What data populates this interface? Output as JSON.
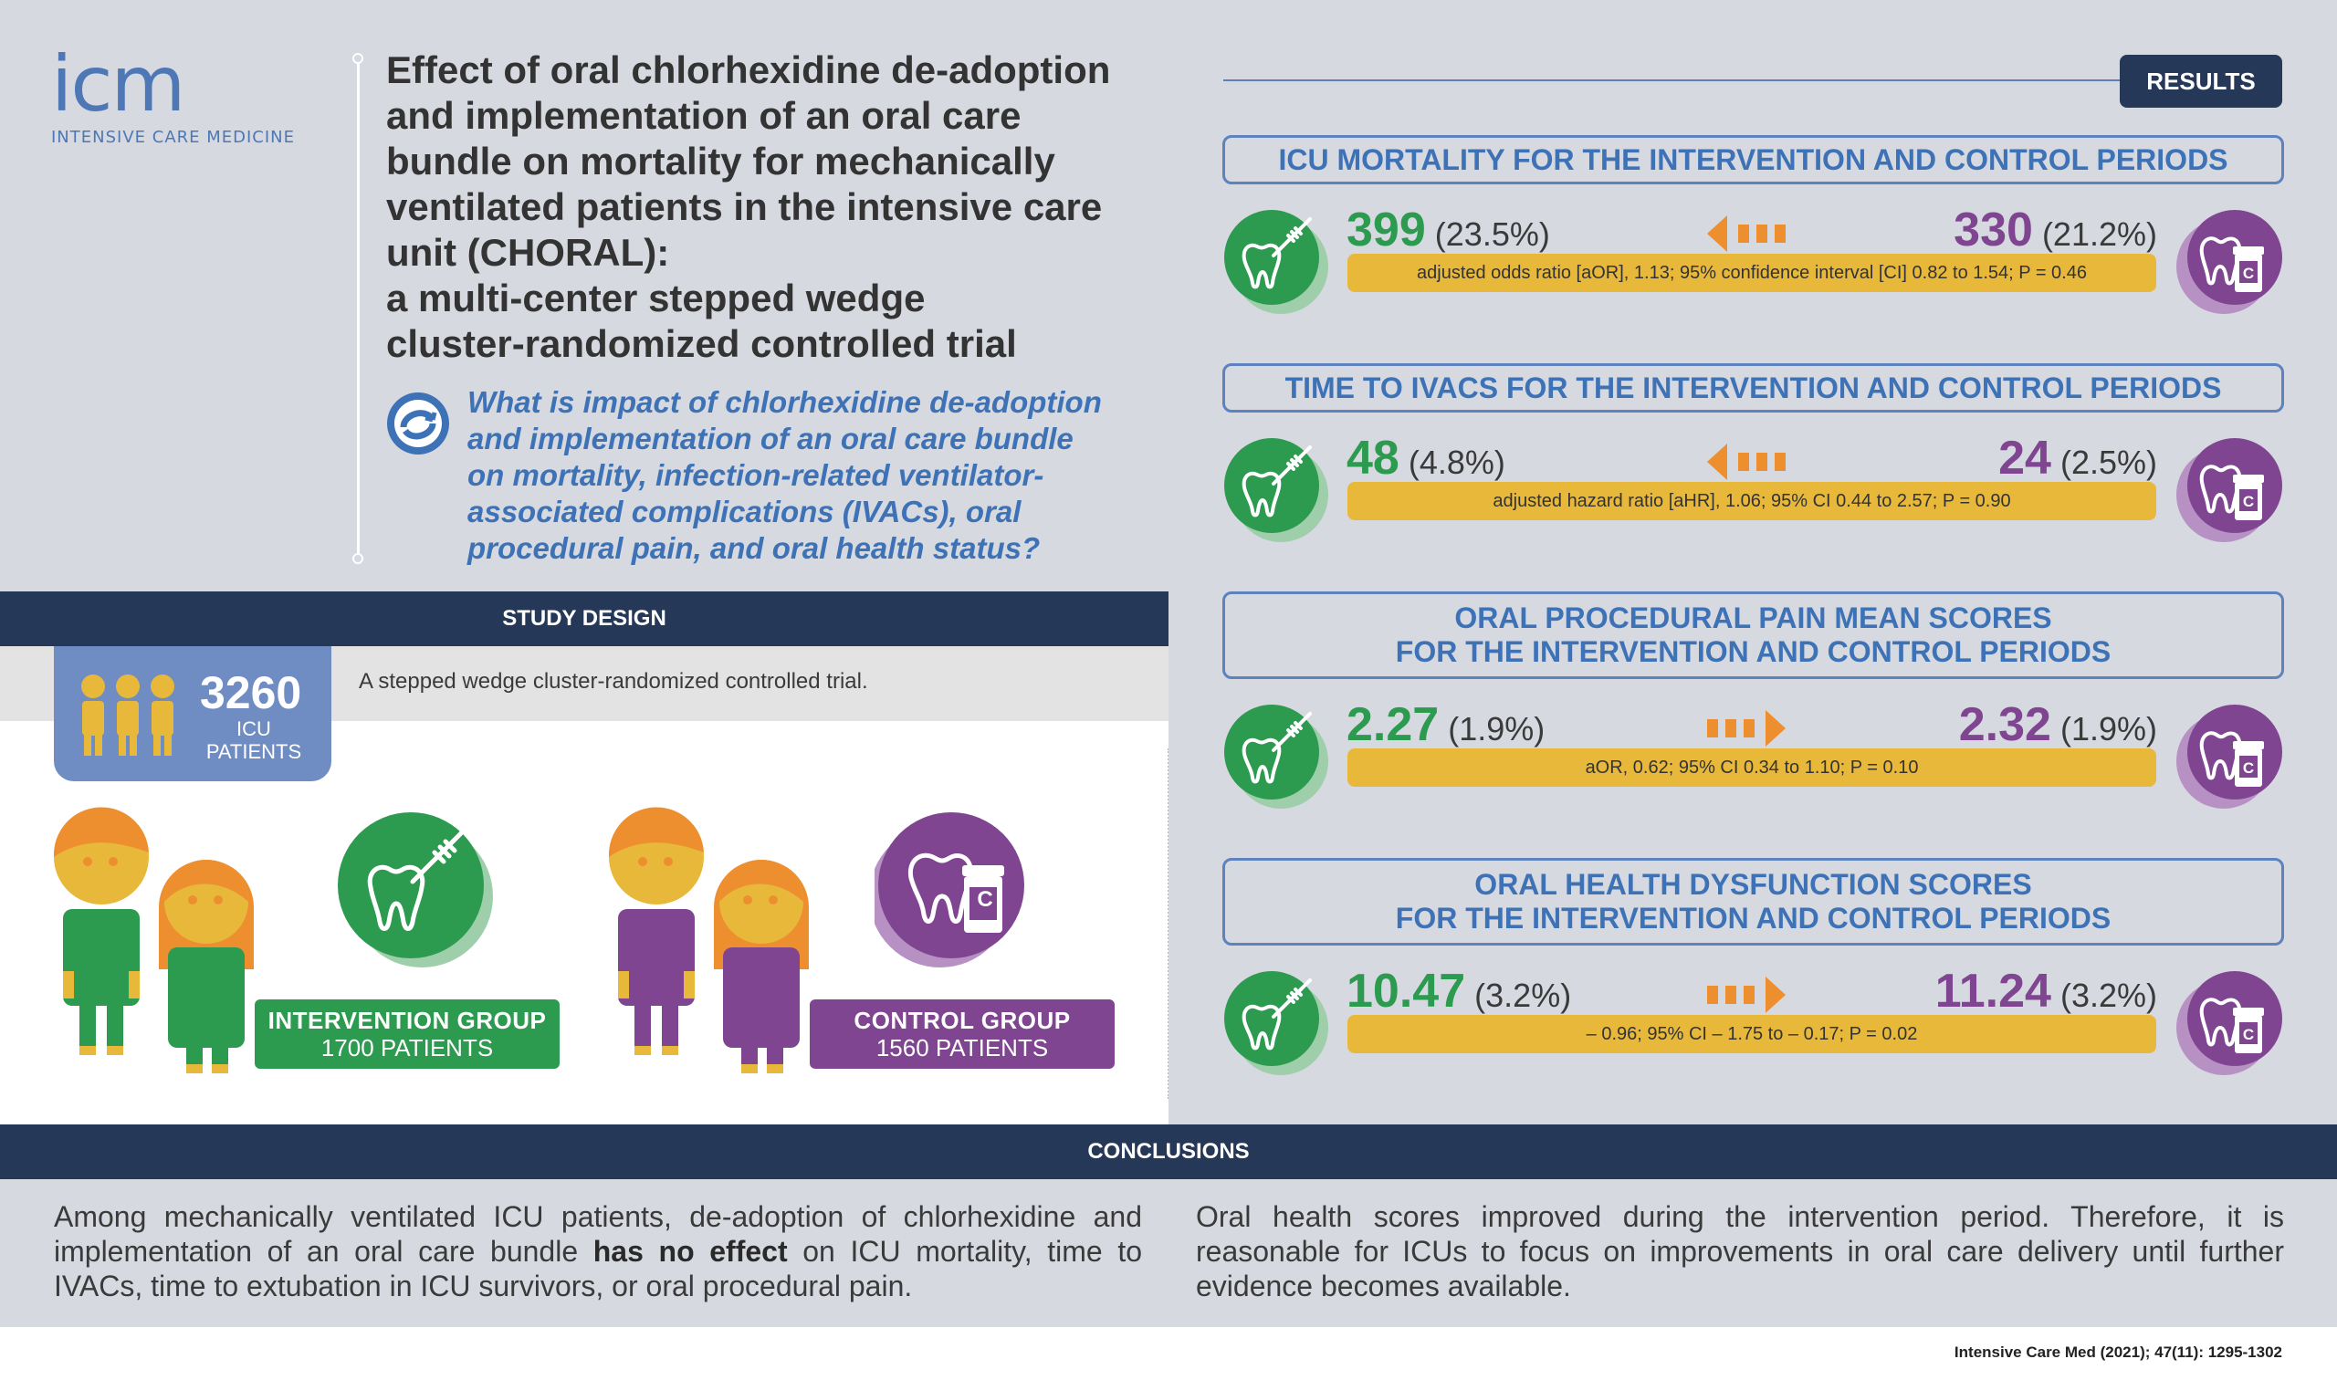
{
  "logo": {
    "text": "icm",
    "subtitle": "INTENSIVE CARE MEDICINE"
  },
  "title": {
    "lines": [
      "Effect of oral chlorhexidine de-adoption",
      "and implementation of an oral care",
      "bundle on mortality for mechanically",
      "ventilated patients in the intensive care",
      "unit (CHORAL):",
      "a multi-center stepped wedge",
      "cluster-randomized controlled trial"
    ]
  },
  "question": {
    "lines": [
      "What is impact of chlorhexidine de-adoption",
      "and implementation of an oral care bundle",
      "on mortality, infection-related ventilator-",
      "associated complications (IVACs), oral",
      "procedural pain, and oral health status?"
    ]
  },
  "study_design": {
    "header": "STUDY DESIGN",
    "description": "A stepped wedge cluster-randomized controlled trial.",
    "total_count": "3260",
    "total_label_1": "ICU",
    "total_label_2": "PATIENTS",
    "intervention": {
      "name": "INTERVENTION GROUP",
      "patients": "1700 PATIENTS"
    },
    "control": {
      "name": "CONTROL GROUP",
      "patients": "1560 PATIENTS",
      "badge_letter": "C"
    }
  },
  "results": {
    "tag": "RESULTS",
    "items": [
      {
        "head_lines": [
          "ICU MORTALITY FOR THE INTERVENTION AND CONTROL PERIODS"
        ],
        "left_value": "399",
        "left_pct": "(23.5%)",
        "right_value": "330",
        "right_pct": "(21.2%)",
        "arrow_direction": "left",
        "stat": "adjusted odds ratio [aOR], 1.13; 95% confidence interval [CI] 0.82 to 1.54; P = 0.46"
      },
      {
        "head_lines": [
          "TIME TO IVACS FOR THE INTERVENTION AND CONTROL PERIODS"
        ],
        "left_value": "48",
        "left_pct": "(4.8%)",
        "right_value": "24",
        "right_pct": "(2.5%)",
        "arrow_direction": "left",
        "stat": "adjusted hazard ratio [aHR], 1.06; 95% CI 0.44 to 2.57; P = 0.90"
      },
      {
        "head_lines": [
          "ORAL PROCEDURAL PAIN MEAN SCORES",
          "FOR THE INTERVENTION AND CONTROL PERIODS"
        ],
        "left_value": "2.27",
        "left_pct": "(1.9%)",
        "right_value": "2.32",
        "right_pct": "(1.9%)",
        "arrow_direction": "right",
        "stat": "aOR, 0.62; 95% CI 0.34 to 1.10; P = 0.10"
      },
      {
        "head_lines": [
          "ORAL HEALTH DYSFUNCTION SCORES",
          "FOR THE INTERVENTION AND CONTROL PERIODS"
        ],
        "left_value": "10.47",
        "left_pct": "(3.2%)",
        "right_value": "11.24",
        "right_pct": "(3.2%)",
        "arrow_direction": "right",
        "stat": "– 0.96; 95% CI – 1.75 to – 0.17; P = 0.02"
      }
    ]
  },
  "conclusions": {
    "header": "CONCLUSIONS",
    "left_pre": "Among mechanically ventilated ICU patients, de-adoption of chlorhexidine and implementation of an oral care bundle ",
    "left_bold": "has no effect",
    "left_post": " on ICU mortality, time to IVACs, time to extubation in ICU survivors, or oral procedural pain.",
    "right": "Oral health scores improved during the intervention period. Therefore, it is reasonable for ICUs to focus on improvements in oral care delivery until further evidence becomes available."
  },
  "citation": "Intensive Care Med (2021); 47(11): 1295-1302",
  "colors": {
    "green": "#2c9a4f",
    "purple": "#7f4591",
    "navy": "#263858",
    "blue_text": "#3e72b6",
    "yellow_bar": "#e8b83a",
    "orange_arrow": "#ee8f2f",
    "panel_gray": "#d6d9e0"
  }
}
